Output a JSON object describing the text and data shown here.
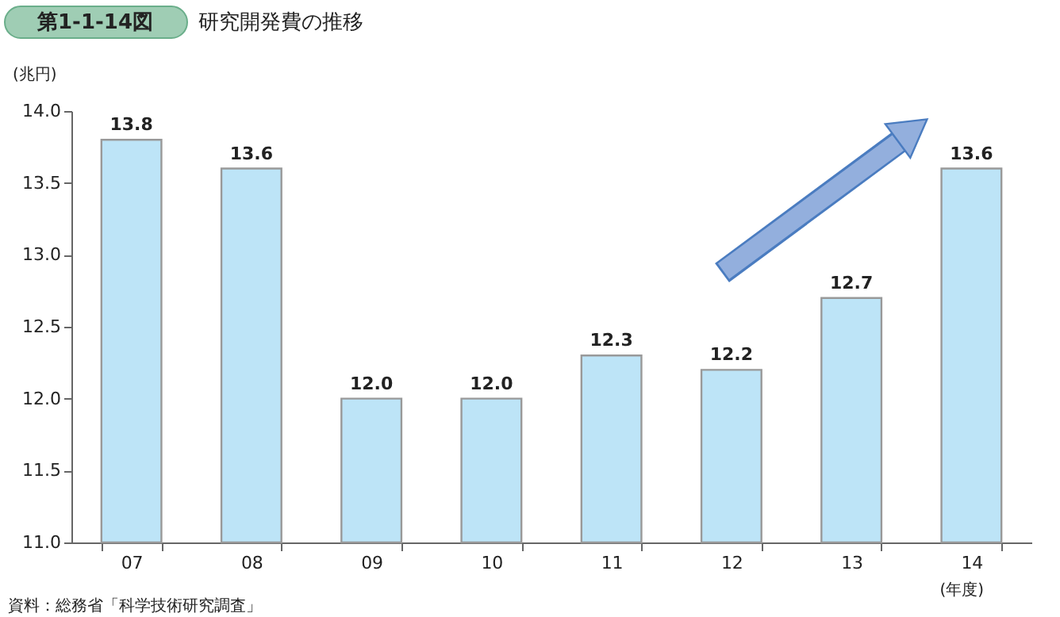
{
  "chart_data": {
    "type": "bar",
    "title": "第1-1-14図",
    "subtitle": "研究開発費の推移",
    "ylabel": "(兆円)",
    "xlabel": "(年度)",
    "annotations": [
      "資料：総務省「科学技術研究調査」"
    ],
    "categories": [
      "07",
      "08",
      "09",
      "10",
      "11",
      "12",
      "13",
      "14"
    ],
    "values": [
      13.8,
      13.6,
      12.0,
      12.0,
      12.3,
      12.2,
      12.7,
      13.6
    ],
    "color": "#bde4f7",
    "value_labels": [
      "13.8",
      "13.6",
      "12.0",
      "12.0",
      "12.3",
      "12.2",
      "12.7",
      "13.6"
    ],
    "ylim": [
      11.0,
      14.0
    ],
    "yticks": [
      {
        "value": 11,
        "label": "11.0"
      },
      {
        "value": 11.5,
        "label": "11.5"
      },
      {
        "value": 12,
        "label": "12.0"
      },
      {
        "value": 12.5,
        "label": "12.5"
      },
      {
        "value": 13,
        "label": "13.0"
      },
      {
        "value": 13.5,
        "label": "13.5"
      },
      {
        "value": 14,
        "label": "14.0"
      }
    ],
    "grid": false
  }
}
